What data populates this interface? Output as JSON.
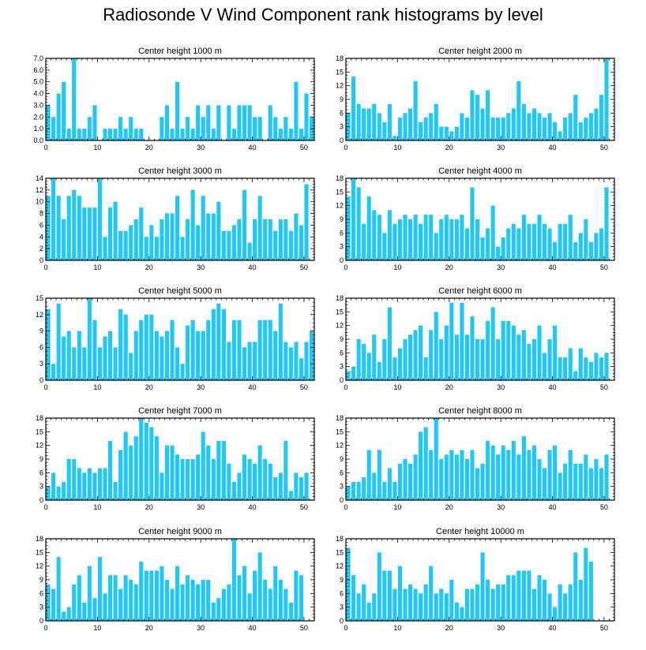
{
  "title": "Radiosonde V Wind Component rank histograms by level",
  "bar_color": "#1fc8f5",
  "chart_data": [
    {
      "type": "bar",
      "title": "Center height 1000 m",
      "xlim": [
        0,
        52
      ],
      "ylim": [
        0,
        7
      ],
      "xticks": [
        "0",
        "10",
        "20",
        "30",
        "40",
        "50"
      ],
      "yticks": [
        "0.0",
        "1.0",
        "2.0",
        "3.0",
        "4.0",
        "5.0",
        "6.0",
        "7.0"
      ],
      "values": [
        3,
        2,
        4,
        5,
        1,
        7,
        1,
        1,
        2,
        3,
        0,
        1,
        1,
        1,
        2,
        1,
        2,
        1,
        1,
        0,
        0,
        0,
        2,
        3,
        1,
        5,
        1,
        2,
        1,
        3,
        2,
        3,
        1,
        3,
        0,
        3,
        1,
        3,
        3,
        3,
        2,
        2,
        0,
        3,
        2,
        1,
        2,
        1,
        5,
        1,
        4,
        2
      ]
    },
    {
      "type": "bar",
      "title": "Center height 2000 m",
      "xlim": [
        0,
        52
      ],
      "ylim": [
        0,
        18
      ],
      "xticks": [
        "0",
        "10",
        "20",
        "30",
        "40",
        "50"
      ],
      "yticks": [
        "0",
        "3",
        "6",
        "9",
        "12",
        "15",
        "18"
      ],
      "values": [
        6,
        14,
        8,
        7,
        7,
        8,
        6,
        4,
        8,
        1,
        5,
        6,
        7,
        13,
        4,
        5,
        6,
        8,
        3,
        3,
        2,
        3,
        6,
        5,
        11,
        10,
        7,
        11,
        5,
        5,
        5,
        6,
        7,
        13,
        8,
        6,
        7,
        6,
        5,
        6,
        4,
        2,
        5,
        6,
        10,
        4,
        5,
        6,
        7,
        10,
        18
      ]
    },
    {
      "type": "bar",
      "title": "Center height 3000 m",
      "xlim": [
        0,
        52
      ],
      "ylim": [
        0,
        14
      ],
      "xticks": [
        "0",
        "10",
        "20",
        "30",
        "40",
        "50"
      ],
      "yticks": [
        "0",
        "2",
        "4",
        "6",
        "8",
        "10",
        "12",
        "14"
      ],
      "values": [
        11,
        14,
        11,
        7,
        11,
        12,
        11,
        9,
        9,
        9,
        14,
        4,
        9,
        10,
        5,
        5,
        6,
        7,
        9,
        4,
        6,
        4,
        7,
        8,
        8,
        11,
        4,
        7,
        12,
        6,
        11,
        8,
        8,
        10,
        5,
        5,
        6,
        7,
        12,
        3,
        7,
        11,
        7,
        7,
        5,
        7,
        7,
        5,
        8,
        6,
        13
      ]
    },
    {
      "type": "bar",
      "title": "Center height 4000 m",
      "xlim": [
        0,
        52
      ],
      "ylim": [
        0,
        18
      ],
      "xticks": [
        "0",
        "10",
        "20",
        "30",
        "40",
        "50"
      ],
      "yticks": [
        "0",
        "3",
        "6",
        "9",
        "12",
        "15",
        "18"
      ],
      "values": [
        14,
        18,
        16,
        8,
        14,
        11,
        10,
        6,
        11,
        8,
        9,
        10,
        9,
        10,
        8,
        10,
        10,
        6,
        9,
        10,
        9,
        9,
        10,
        7,
        16,
        9,
        5,
        7,
        12,
        3,
        5,
        7,
        8,
        7,
        10,
        8,
        8,
        10,
        8,
        7,
        4,
        8,
        8,
        10,
        4,
        6,
        9,
        4,
        6,
        7,
        16
      ]
    },
    {
      "type": "bar",
      "title": "Center height 5000 m",
      "xlim": [
        0,
        52
      ],
      "ylim": [
        0,
        15
      ],
      "xticks": [
        "0",
        "10",
        "20",
        "30",
        "40",
        "50"
      ],
      "yticks": [
        "0",
        "3",
        "6",
        "9",
        "12",
        "15"
      ],
      "values": [
        13,
        3,
        14,
        8,
        9,
        6,
        9,
        6,
        15,
        11,
        6,
        8,
        9,
        6,
        13,
        12,
        5,
        9,
        11,
        12,
        12,
        9,
        8,
        9,
        11,
        6,
        3,
        10,
        11,
        9,
        9,
        11,
        13,
        14,
        13,
        7,
        11,
        11,
        6,
        7,
        7,
        11,
        11,
        11,
        9,
        14,
        7,
        6,
        7,
        4,
        7,
        9
      ]
    },
    {
      "type": "bar",
      "title": "Center height 6000 m",
      "xlim": [
        0,
        52
      ],
      "ylim": [
        0,
        18
      ],
      "xticks": [
        "0",
        "10",
        "20",
        "30",
        "40",
        "50"
      ],
      "yticks": [
        "0",
        "3",
        "6",
        "9",
        "12",
        "15",
        "18"
      ],
      "values": [
        2,
        3,
        9,
        8,
        6,
        10,
        4,
        9,
        16,
        5,
        7,
        9,
        10,
        11,
        12,
        5,
        11,
        15,
        9,
        12,
        17,
        10,
        17,
        10,
        14,
        9,
        9,
        13,
        16,
        9,
        13,
        13,
        12,
        10,
        11,
        8,
        9,
        12,
        6,
        9,
        12,
        5,
        5,
        7,
        2,
        7,
        5,
        4,
        6,
        5,
        6
      ]
    },
    {
      "type": "bar",
      "title": "Center height 7000 m",
      "xlim": [
        0,
        52
      ],
      "ylim": [
        0,
        18
      ],
      "xticks": [
        "0",
        "10",
        "20",
        "30",
        "40",
        "50"
      ],
      "yticks": [
        "0",
        "3",
        "6",
        "9",
        "12",
        "15",
        "18"
      ],
      "values": [
        3,
        6,
        3,
        4,
        9,
        9,
        7,
        6,
        7,
        6,
        7,
        7,
        13,
        4,
        11,
        15,
        12,
        14,
        18,
        17,
        16,
        14,
        6,
        12,
        12,
        10,
        9,
        9,
        9,
        10,
        15,
        12,
        9,
        13,
        13,
        8,
        4,
        6,
        10,
        9,
        8,
        12,
        9,
        8,
        5,
        6,
        13,
        2,
        6,
        5,
        6
      ]
    },
    {
      "type": "bar",
      "title": "Center height 8000 m",
      "xlim": [
        0,
        52
      ],
      "ylim": [
        0,
        18
      ],
      "xticks": [
        "0",
        "10",
        "20",
        "30",
        "40",
        "50"
      ],
      "yticks": [
        "0",
        "3",
        "6",
        "9",
        "12",
        "15",
        "18"
      ],
      "values": [
        3,
        4,
        4,
        5,
        11,
        6,
        11,
        4,
        7,
        4,
        8,
        9,
        8,
        10,
        15,
        16,
        11,
        18,
        9,
        10,
        11,
        10,
        11,
        9,
        11,
        7,
        8,
        13,
        12,
        10,
        12,
        11,
        13,
        10,
        14,
        11,
        12,
        9,
        7,
        11,
        12,
        6,
        8,
        11,
        8,
        8,
        10,
        7,
        9,
        7,
        10
      ]
    },
    {
      "type": "bar",
      "title": "Center height 9000 m",
      "xlim": [
        0,
        52
      ],
      "ylim": [
        0,
        18
      ],
      "xticks": [
        "0",
        "10",
        "20",
        "30",
        "40",
        "50"
      ],
      "yticks": [
        "0",
        "3",
        "6",
        "9",
        "12",
        "15",
        "18"
      ],
      "values": [
        8,
        7,
        14,
        2,
        3,
        8,
        10,
        4,
        12,
        5,
        14,
        6,
        10,
        10,
        7,
        10,
        9,
        8,
        13,
        11,
        11,
        11,
        12,
        9,
        7,
        12,
        8,
        10,
        9,
        8,
        9,
        9,
        4,
        5,
        7,
        8,
        18,
        10,
        12,
        6,
        11,
        15,
        9,
        7,
        12,
        9,
        7,
        4,
        11,
        10
      ]
    },
    {
      "type": "bar",
      "title": "Center height 10000 m",
      "xlim": [
        0,
        52
      ],
      "ylim": [
        0,
        18
      ],
      "xticks": [
        "0",
        "10",
        "20",
        "30",
        "40",
        "50"
      ],
      "yticks": [
        "0",
        "3",
        "6",
        "9",
        "12",
        "15",
        "18"
      ],
      "values": [
        16,
        10,
        6,
        8,
        4,
        6,
        15,
        11,
        11,
        7,
        12,
        7,
        8,
        7,
        6,
        8,
        12,
        6,
        7,
        6,
        9,
        4,
        3,
        7,
        7,
        8,
        15,
        9,
        7,
        8,
        8,
        10,
        10,
        11,
        11,
        11,
        7,
        10,
        9,
        6,
        3,
        8,
        6,
        8,
        15,
        9,
        16,
        13
      ]
    }
  ]
}
